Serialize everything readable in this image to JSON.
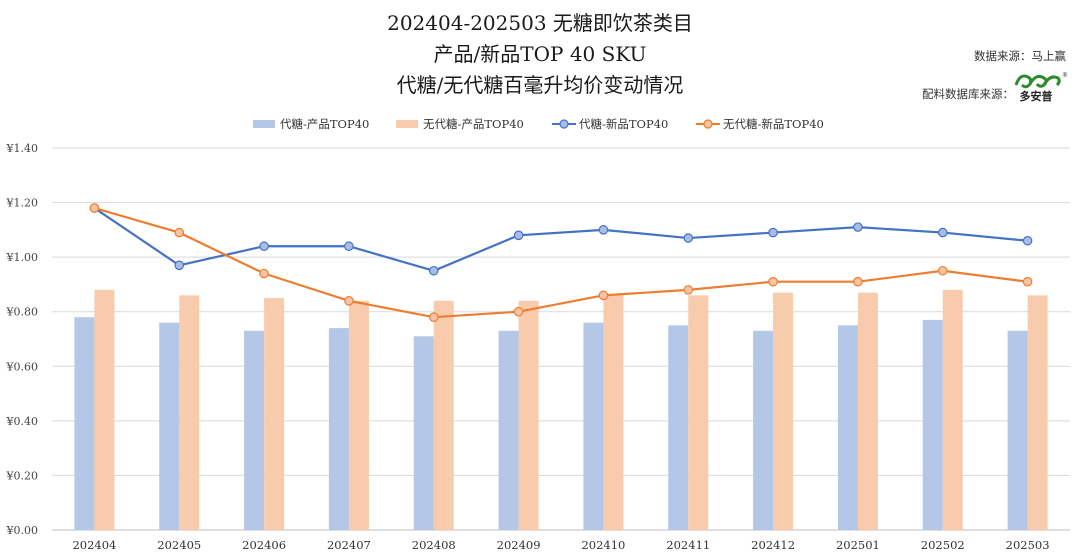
{
  "header": {
    "title_lines": [
      "202404-202503 无糖即饮茶类目",
      "产品/新品TOP 40 SKU",
      "代糖/无代糖百毫升均价变动情况"
    ],
    "source_label": "数据来源：马上赢",
    "ingredient_source_label": "配料数据库来源：",
    "logo_text": "多安普",
    "logo_mark": "®"
  },
  "colors": {
    "bar_sub": "#b4c7e7",
    "bar_nosub": "#f8cbad",
    "line_sub": "#4472c4",
    "line_nosub": "#ed7d31",
    "grid": "#d9d9d9",
    "logo_green": "#2e8b2e"
  },
  "chart_data": {
    "type": "bar",
    "categories": [
      "202404",
      "202405",
      "202406",
      "202407",
      "202408",
      "202409",
      "202410",
      "202411",
      "202412",
      "202501",
      "202502",
      "202503"
    ],
    "ylim": [
      0,
      1.4
    ],
    "yticks": [
      "¥0.00",
      "¥0.20",
      "¥0.40",
      "¥0.60",
      "¥0.80",
      "¥1.00",
      "¥1.20",
      "¥1.40"
    ],
    "grid": true,
    "legend_position": "top-center",
    "series": [
      {
        "name": "代糖-产品TOP40",
        "kind": "bar",
        "values": [
          0.78,
          0.76,
          0.73,
          0.74,
          0.71,
          0.73,
          0.76,
          0.75,
          0.73,
          0.75,
          0.77,
          0.73
        ]
      },
      {
        "name": "无代糖-产品TOP40",
        "kind": "bar",
        "values": [
          0.88,
          0.86,
          0.85,
          0.84,
          0.84,
          0.84,
          0.86,
          0.86,
          0.87,
          0.87,
          0.88,
          0.86
        ]
      },
      {
        "name": "代糖-新品TOP40",
        "kind": "line",
        "values": [
          1.18,
          0.97,
          1.04,
          1.04,
          0.95,
          1.08,
          1.1,
          1.07,
          1.09,
          1.11,
          1.09,
          1.06
        ]
      },
      {
        "name": "无代糖-新品TOP40",
        "kind": "line",
        "values": [
          1.18,
          1.09,
          0.94,
          0.84,
          0.78,
          0.8,
          0.86,
          0.88,
          0.91,
          0.91,
          0.95,
          0.91
        ]
      }
    ]
  }
}
